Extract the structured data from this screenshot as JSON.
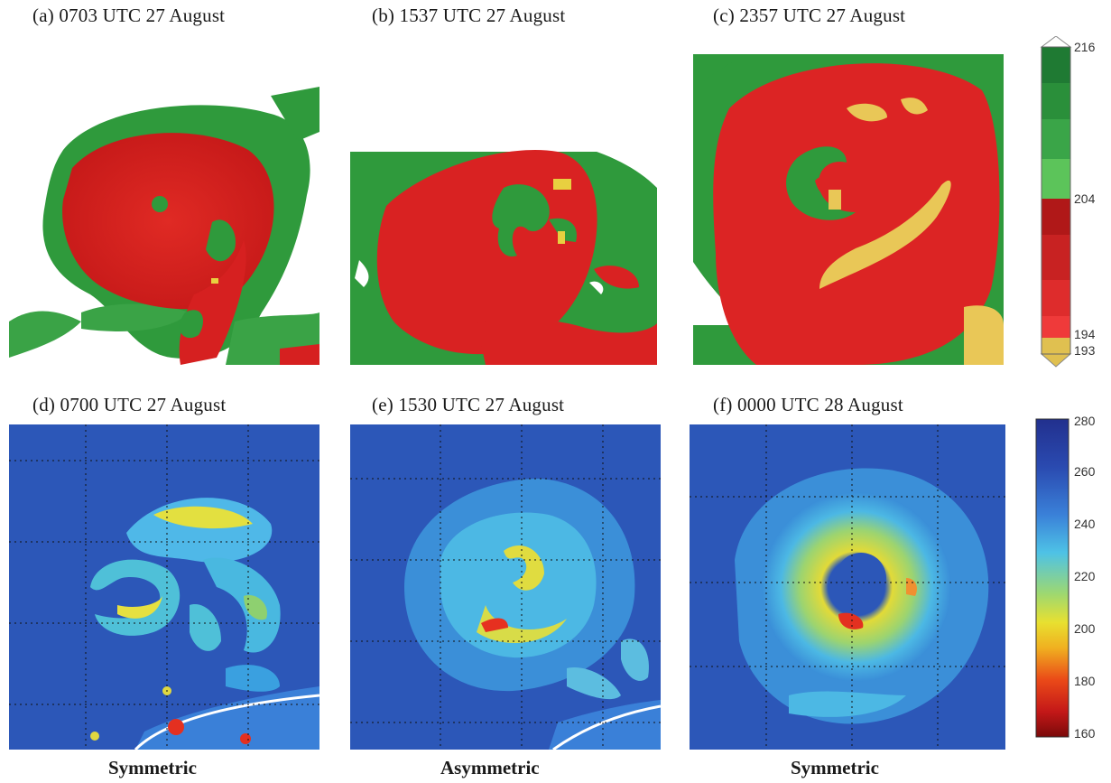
{
  "panels": {
    "a": {
      "title": "(a)  0703 UTC 27 August"
    },
    "b": {
      "title": "(b)  1537 UTC 27 August"
    },
    "c": {
      "title": "(c)  2357 UTC 27 August"
    },
    "d": {
      "title": "(d)  0700 UTC 27 August"
    },
    "e": {
      "title": "(e)  1530 UTC 27 August"
    },
    "f": {
      "title": "(f)  0000 UTC 28 August"
    }
  },
  "captions": {
    "d": "Symmetric",
    "e": "Asymmetric",
    "f": "Symmetric"
  },
  "colorbar_top": {
    "ticks": [
      "216",
      "204",
      "194",
      "193"
    ],
    "colors": {
      "green_dark": "#1e7a35",
      "green_light": "#5cc45a",
      "red_dark": "#b01818",
      "red_light": "#ef3333",
      "yellow": "#e0c050"
    }
  },
  "colorbar_bottom": {
    "ticks": [
      "280",
      "260",
      "240",
      "220",
      "200",
      "180",
      "160"
    ]
  }
}
